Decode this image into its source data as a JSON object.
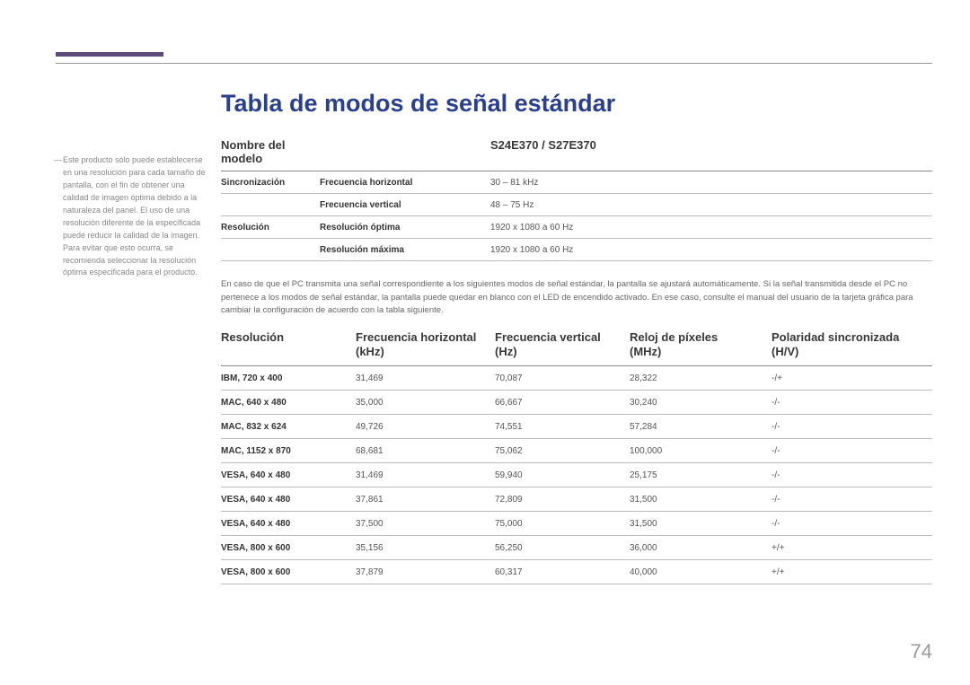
{
  "title": "Tabla de modos de señal estándar",
  "sidebar_note": "Este producto sólo puede establecerse en una resolución para cada tamaño de pantalla, con el fin de obtener una calidad de imagen óptima debido a la naturaleza del panel. El uso de una resolución diferente de la especificada puede reducir la calidad de la imagen. Para evitar que esto ocurra, se recomienda seleccionar la resolución óptima especificada para el producto.",
  "spec": {
    "header_left": "Nombre del modelo",
    "header_right": "S24E370 / S27E370",
    "rows": [
      {
        "group": "Sincronización",
        "label": "Frecuencia horizontal",
        "value": "30 – 81 kHz"
      },
      {
        "group": "",
        "label": "Frecuencia vertical",
        "value": "48 – 75 Hz"
      },
      {
        "group": "Resolución",
        "label": "Resolución óptima",
        "value": "1920 x 1080 a 60 Hz"
      },
      {
        "group": "",
        "label": "Resolución máxima",
        "value": "1920 x 1080 a 60 Hz"
      }
    ]
  },
  "paragraph": "En caso de que el PC transmita una señal correspondiente a los siguientes modos de señal estándar, la pantalla se ajustará automáticamente. Si la señal transmitida desde el PC no pertenece a los modos de señal estándar, la pantalla puede quedar en blanco con el LED de encendido activado. En ese caso, consulte el manual del usuario de la tarjeta gráfica para cambiar la configuración de acuerdo con la tabla siguiente.",
  "table": {
    "columns": [
      "Resolución",
      "Frecuencia horizontal (kHz)",
      "Frecuencia vertical (Hz)",
      "Reloj de píxeles (MHz)",
      "Polaridad sincronizada (H/V)"
    ],
    "rows": [
      [
        "IBM, 720 x 400",
        "31,469",
        "70,087",
        "28,322",
        "-/+"
      ],
      [
        "MAC, 640 x 480",
        "35,000",
        "66,667",
        "30,240",
        "-/-"
      ],
      [
        "MAC, 832 x 624",
        "49,726",
        "74,551",
        "57,284",
        "-/-"
      ],
      [
        "MAC, 1152 x 870",
        "68,681",
        "75,062",
        "100,000",
        "-/-"
      ],
      [
        "VESA, 640 x 480",
        "31,469",
        "59,940",
        "25,175",
        "-/-"
      ],
      [
        "VESA, 640 x 480",
        "37,861",
        "72,809",
        "31,500",
        "-/-"
      ],
      [
        "VESA, 640 x 480",
        "37,500",
        "75,000",
        "31,500",
        "-/-"
      ],
      [
        "VESA, 800 x 600",
        "35,156",
        "56,250",
        "36,000",
        "+/+"
      ],
      [
        "VESA, 800 x 600",
        "37,879",
        "60,317",
        "40,000",
        "+/+"
      ]
    ]
  },
  "page_number": "74",
  "colors": {
    "accent_bar": "#5b4a7a",
    "title": "#2a3f8f",
    "text": "#5a5a5a",
    "border_strong": "#888888",
    "border_soft": "#bbbbbb"
  }
}
